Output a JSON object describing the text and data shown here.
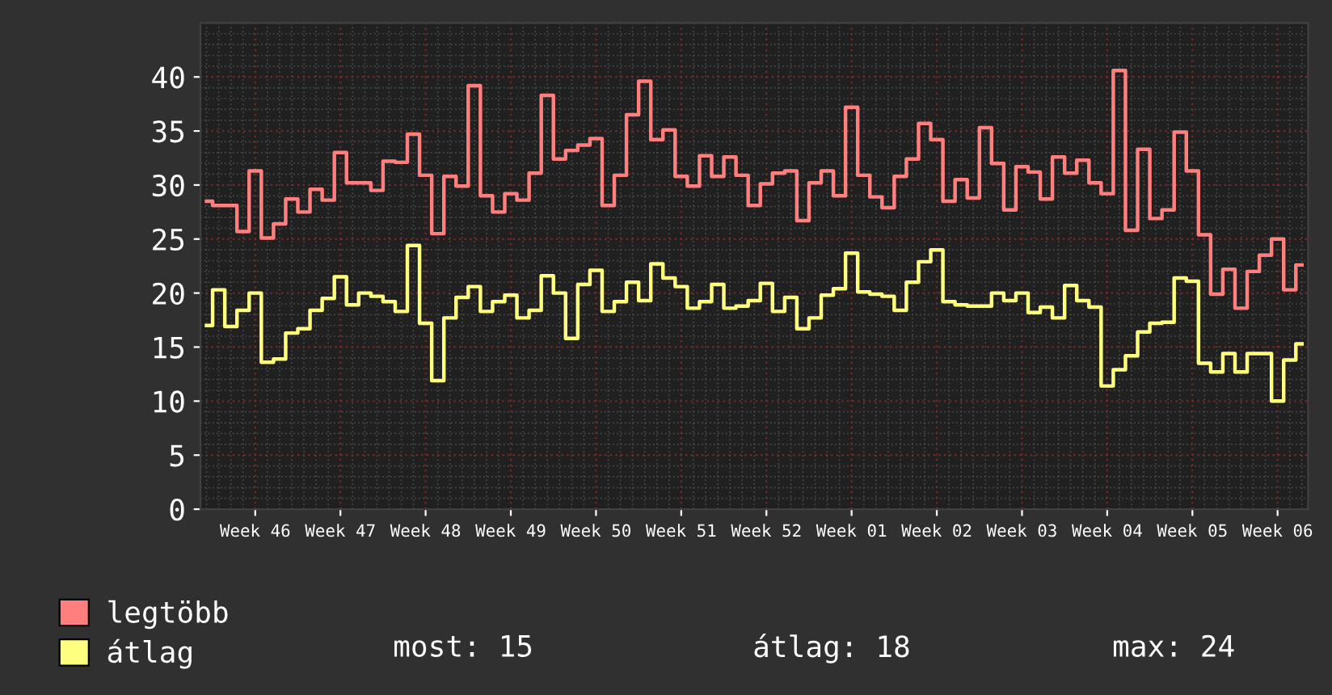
{
  "chart_data": {
    "type": "step",
    "categories": [
      null,
      null,
      null,
      null,
      "Week 46",
      null,
      null,
      null,
      null,
      null,
      null,
      "Week 47",
      null,
      null,
      null,
      null,
      null,
      null,
      "Week 48",
      null,
      null,
      null,
      null,
      null,
      null,
      "Week 49",
      null,
      null,
      null,
      null,
      null,
      null,
      "Week 50",
      null,
      null,
      null,
      null,
      null,
      null,
      "Week 51",
      null,
      null,
      null,
      null,
      null,
      null,
      "Week 52",
      null,
      null,
      null,
      null,
      null,
      null,
      "Week 01",
      null,
      null,
      null,
      null,
      null,
      null,
      "Week 02",
      null,
      null,
      null,
      null,
      null,
      null,
      "Week 03",
      null,
      null,
      null,
      null,
      null,
      null,
      "Week 04",
      null,
      null,
      null,
      null,
      null,
      null,
      "Week 05",
      null,
      null,
      null,
      null,
      null,
      null,
      "Week 06",
      null,
      null
    ],
    "series": [
      {
        "name": "legtöbb",
        "color": "#ff7f7f",
        "values": [
          28.5,
          28.1,
          28.1,
          25.7,
          31.3,
          25.1,
          26.4,
          28.7,
          27.5,
          29.6,
          28.6,
          33.0,
          30.2,
          30.2,
          29.5,
          32.2,
          32.1,
          34.7,
          30.9,
          25.5,
          30.8,
          29.9,
          39.2,
          29.0,
          27.5,
          29.2,
          28.6,
          31.1,
          38.3,
          32.4,
          33.2,
          33.7,
          34.3,
          28.1,
          30.9,
          36.5,
          39.6,
          34.2,
          35.1,
          30.8,
          29.9,
          32.7,
          30.8,
          32.6,
          30.9,
          28.1,
          30.1,
          31.1,
          31.3,
          26.7,
          30.2,
          31.3,
          29.0,
          37.2,
          30.9,
          28.9,
          27.9,
          30.8,
          32.4,
          35.7,
          34.2,
          28.5,
          30.5,
          28.8,
          35.3,
          32.0,
          27.7,
          31.7,
          31.2,
          28.7,
          32.6,
          31.1,
          32.3,
          30.2,
          29.2,
          40.6,
          25.8,
          33.3,
          26.9,
          27.7,
          34.9,
          31.3,
          25.4,
          19.9,
          22.2,
          18.6,
          22.0,
          23.5,
          25.0,
          20.3,
          22.6
        ]
      },
      {
        "name": "átlag",
        "color": "#ffff7f",
        "values": [
          17.0,
          20.3,
          16.9,
          18.4,
          20.0,
          13.6,
          13.9,
          16.3,
          16.7,
          18.4,
          19.5,
          21.5,
          18.9,
          20.0,
          19.7,
          19.2,
          18.3,
          24.4,
          17.2,
          11.9,
          17.7,
          19.6,
          20.6,
          18.3,
          19.2,
          19.8,
          17.7,
          18.4,
          21.6,
          20.0,
          15.8,
          20.8,
          22.1,
          18.3,
          19.2,
          21.0,
          19.3,
          22.7,
          21.4,
          20.6,
          18.6,
          19.2,
          20.8,
          18.6,
          18.8,
          19.3,
          20.9,
          18.3,
          19.6,
          16.7,
          17.7,
          19.8,
          20.4,
          23.7,
          20.1,
          19.9,
          19.7,
          18.4,
          21.0,
          22.9,
          24.0,
          19.2,
          18.9,
          18.8,
          18.8,
          20.0,
          19.3,
          20.0,
          18.2,
          18.7,
          17.7,
          20.7,
          19.3,
          18.7,
          11.4,
          12.9,
          14.2,
          16.4,
          17.2,
          17.3,
          21.4,
          21.1,
          13.5,
          12.7,
          14.4,
          12.7,
          14.4,
          14.4,
          10.0,
          13.8,
          15.3
        ]
      }
    ],
    "ylim": [
      0,
      45
    ],
    "yticks": [
      0,
      5,
      10,
      15,
      20,
      25,
      30,
      35,
      40
    ],
    "grid": true,
    "legend": "bottom",
    "annotations": [
      "most: 15",
      "átlag: 18",
      "max: 24"
    ]
  }
}
